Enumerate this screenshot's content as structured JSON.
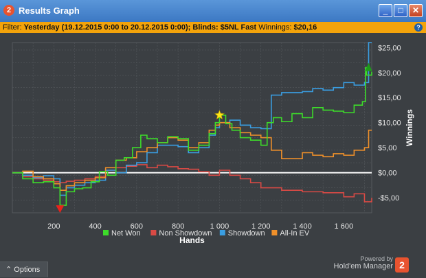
{
  "window": {
    "title": "Results Graph",
    "app_icon_text": "2",
    "minimize_glyph": "_",
    "maximize_glyph": "□",
    "close_glyph": "✕"
  },
  "filter": {
    "prefix": "Filter:",
    "date_range": "Yesterday (19.12.2015 0:00 to 20.12.2015 0:00);",
    "blinds": "Blinds: $5NL Fast",
    "winnings_label": "Winnings:",
    "winnings_value": "$20,16",
    "help_glyph": "?"
  },
  "footer": {
    "options_label": "Options",
    "options_glyph": "⌃",
    "powered_by": "Powered by",
    "brand": "Hold'em Manager",
    "brand_badge": "2"
  },
  "colors": {
    "net_won": "#3ddc2a",
    "non_showdown": "#d94a45",
    "showdown": "#3a9ee2",
    "all_in_ev": "#f0902a",
    "zero_line": "#ffffff",
    "grid": "#54585c",
    "plot_bg": "#3b3f43",
    "title_bar": "#3c78c3",
    "filter_bar": "#f3a30b"
  },
  "chart_data": {
    "type": "line",
    "xlabel": "Hands",
    "ylabel": "Winnings",
    "xlim": [
      0,
      1735
    ],
    "ylim": [
      -8,
      26
    ],
    "x_ticks": [
      200,
      400,
      600,
      800,
      1000,
      1200,
      1400,
      1600
    ],
    "x_tick_labels": [
      "200",
      "400",
      "600",
      "800",
      "1 000",
      "1 200",
      "1 400",
      "1 600"
    ],
    "y_ticks": [
      -5,
      0,
      5,
      10,
      15,
      20,
      25
    ],
    "y_tick_labels": [
      "-$5,00",
      "$0,00",
      "$5,00",
      "$10,00",
      "$15,00",
      "$20,00",
      "$25,00"
    ],
    "grid": true,
    "legend_position": "bottom",
    "markers": [
      {
        "label": "max-marker",
        "shape": "star",
        "x": 1000,
        "y": 11.5
      },
      {
        "label": "min-marker",
        "shape": "down-triangle",
        "x": 230,
        "y": -7.2
      },
      {
        "label": "end-marker",
        "shape": "up-triangle",
        "x": 1720,
        "y": 21.0
      }
    ],
    "series": [
      {
        "name": "Net Won",
        "x": [
          0,
          50,
          100,
          150,
          200,
          230,
          260,
          300,
          340,
          380,
          420,
          460,
          500,
          540,
          580,
          620,
          650,
          700,
          750,
          800,
          850,
          900,
          950,
          980,
          1000,
          1030,
          1060,
          1100,
          1150,
          1200,
          1230,
          1260,
          1300,
          1350,
          1400,
          1450,
          1500,
          1550,
          1600,
          1650,
          1690,
          1705,
          1710,
          1735
        ],
        "y": [
          0,
          -1.2,
          -2.0,
          -1.8,
          -3.0,
          -6.5,
          -3.8,
          -3.2,
          -3.0,
          -1.8,
          0.2,
          -0.5,
          2.5,
          3.0,
          5.0,
          7.5,
          6.8,
          6.0,
          7.2,
          6.8,
          4.5,
          5.5,
          7.8,
          10.0,
          11.5,
          9.8,
          8.5,
          7.0,
          6.5,
          5.5,
          10.0,
          11.0,
          10.2,
          11.8,
          11.0,
          13.0,
          12.5,
          12.3,
          12.0,
          13.5,
          14.2,
          21.0,
          19.5,
          20.16
        ]
      },
      {
        "name": "Non Showdown",
        "x": [
          0,
          50,
          100,
          150,
          200,
          230,
          260,
          300,
          350,
          400,
          450,
          500,
          550,
          600,
          650,
          700,
          750,
          800,
          850,
          900,
          950,
          1000,
          1050,
          1100,
          1150,
          1200,
          1300,
          1400,
          1500,
          1600,
          1650,
          1700,
          1735
        ],
        "y": [
          0,
          -0.8,
          -1.2,
          -1.5,
          -1.8,
          -2.0,
          -1.7,
          -1.5,
          -1.2,
          -0.8,
          0.5,
          1.0,
          1.3,
          1.6,
          1.0,
          1.5,
          1.2,
          0.8,
          0.7,
          0.2,
          -0.5,
          0.5,
          -0.5,
          -1.2,
          -2.0,
          -3.0,
          -3.5,
          -3.8,
          -4.0,
          -4.8,
          -4.2,
          -5.8,
          -5.0
        ]
      },
      {
        "name": "Showdown",
        "x": [
          0,
          50,
          100,
          150,
          200,
          230,
          260,
          300,
          350,
          400,
          450,
          500,
          550,
          600,
          650,
          700,
          750,
          800,
          850,
          900,
          950,
          980,
          1000,
          1050,
          1100,
          1150,
          1200,
          1250,
          1300,
          1400,
          1450,
          1500,
          1550,
          1600,
          1650,
          1700,
          1720,
          1735
        ],
        "y": [
          0,
          -0.5,
          -1.0,
          -0.6,
          -1.2,
          -4.5,
          -3.0,
          -2.5,
          -2.0,
          -1.5,
          0.5,
          0.0,
          1.5,
          2.0,
          4.0,
          5.5,
          5.5,
          5.2,
          4.0,
          5.0,
          7.5,
          9.0,
          10.0,
          10.5,
          9.5,
          9.0,
          8.8,
          15.5,
          16.0,
          16.2,
          16.8,
          16.5,
          17.0,
          18.0,
          17.5,
          18.0,
          26.0,
          26.0
        ]
      },
      {
        "name": "All-In EV",
        "x": [
          0,
          50,
          100,
          150,
          200,
          230,
          260,
          300,
          350,
          400,
          450,
          500,
          550,
          600,
          650,
          700,
          750,
          800,
          850,
          900,
          950,
          980,
          1000,
          1050,
          1100,
          1150,
          1200,
          1250,
          1300,
          1400,
          1450,
          1500,
          1550,
          1600,
          1650,
          1700,
          1720,
          1735
        ],
        "y": [
          0,
          0.3,
          -0.8,
          -1.2,
          -2.2,
          -3.5,
          -2.6,
          -2.0,
          -1.5,
          -1.0,
          1.0,
          2.5,
          3.0,
          4.2,
          5.0,
          6.0,
          7.0,
          6.5,
          5.0,
          6.0,
          8.5,
          9.5,
          10.0,
          9.0,
          8.0,
          7.5,
          7.0,
          4.5,
          2.8,
          4.0,
          3.5,
          3.2,
          3.8,
          3.5,
          4.5,
          5.0,
          8.5,
          8.5
        ]
      }
    ]
  }
}
